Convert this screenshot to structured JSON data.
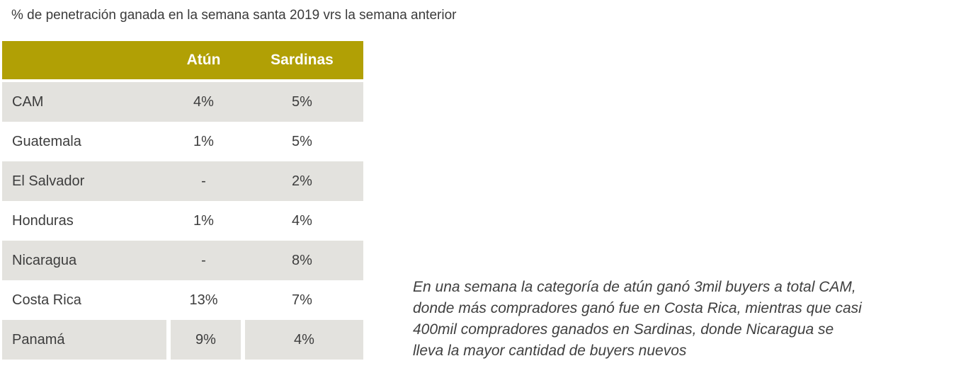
{
  "title": "% de penetración ganada en la semana santa 2019 vrs la semana anterior",
  "colors": {
    "header_bg": "#b1a005",
    "stripe_bg": "#e3e2de",
    "header_text": "#ffffff",
    "body_text": "#3d3d3d",
    "background": "#ffffff"
  },
  "table": {
    "columns": [
      "",
      "Atún",
      "Sardinas"
    ],
    "rows": [
      {
        "country": "CAM",
        "atun": "4%",
        "sardinas": "5%"
      },
      {
        "country": "Guatemala",
        "atun": "1%",
        "sardinas": "5%"
      },
      {
        "country": "El Salvador",
        "atun": "-",
        "sardinas": "2%"
      },
      {
        "country": "Honduras",
        "atun": "1%",
        "sardinas": "4%"
      },
      {
        "country": "Nicaragua",
        "atun": "-",
        "sardinas": "8%"
      },
      {
        "country": "Costa Rica",
        "atun": "13%",
        "sardinas": "7%"
      },
      {
        "country": "Panamá",
        "atun": "9%",
        "sardinas": "4%"
      }
    ]
  },
  "annotation": {
    "lines": [
      "En una semana la categoría de atún ganó 3mil buyers a total CAM,",
      "donde más compradores ganó fue en Costa Rica, mientras que casi",
      "400mil compradores ganados en Sardinas, donde Nicaragua se",
      "lleva la mayor cantidad de buyers nuevos"
    ]
  },
  "chart_data": {
    "type": "table",
    "title": "% de penetración ganada en la semana santa 2019 vrs la semana anterior",
    "categories": [
      "CAM",
      "Guatemala",
      "El Salvador",
      "Honduras",
      "Nicaragua",
      "Costa Rica",
      "Panamá"
    ],
    "series": [
      {
        "name": "Atún",
        "values": [
          4,
          1,
          null,
          1,
          null,
          13,
          9
        ],
        "unit": "%"
      },
      {
        "name": "Sardinas",
        "values": [
          5,
          5,
          2,
          4,
          8,
          7,
          4
        ],
        "unit": "%"
      }
    ],
    "annotation": "En una semana la categoría de atún ganó 3mil buyers a total CAM, donde más compradores ganó fue en Costa Rica, mientras que casi 400mil compradores ganados en Sardinas, donde Nicaragua se lleva la mayor cantidad de buyers nuevos"
  }
}
